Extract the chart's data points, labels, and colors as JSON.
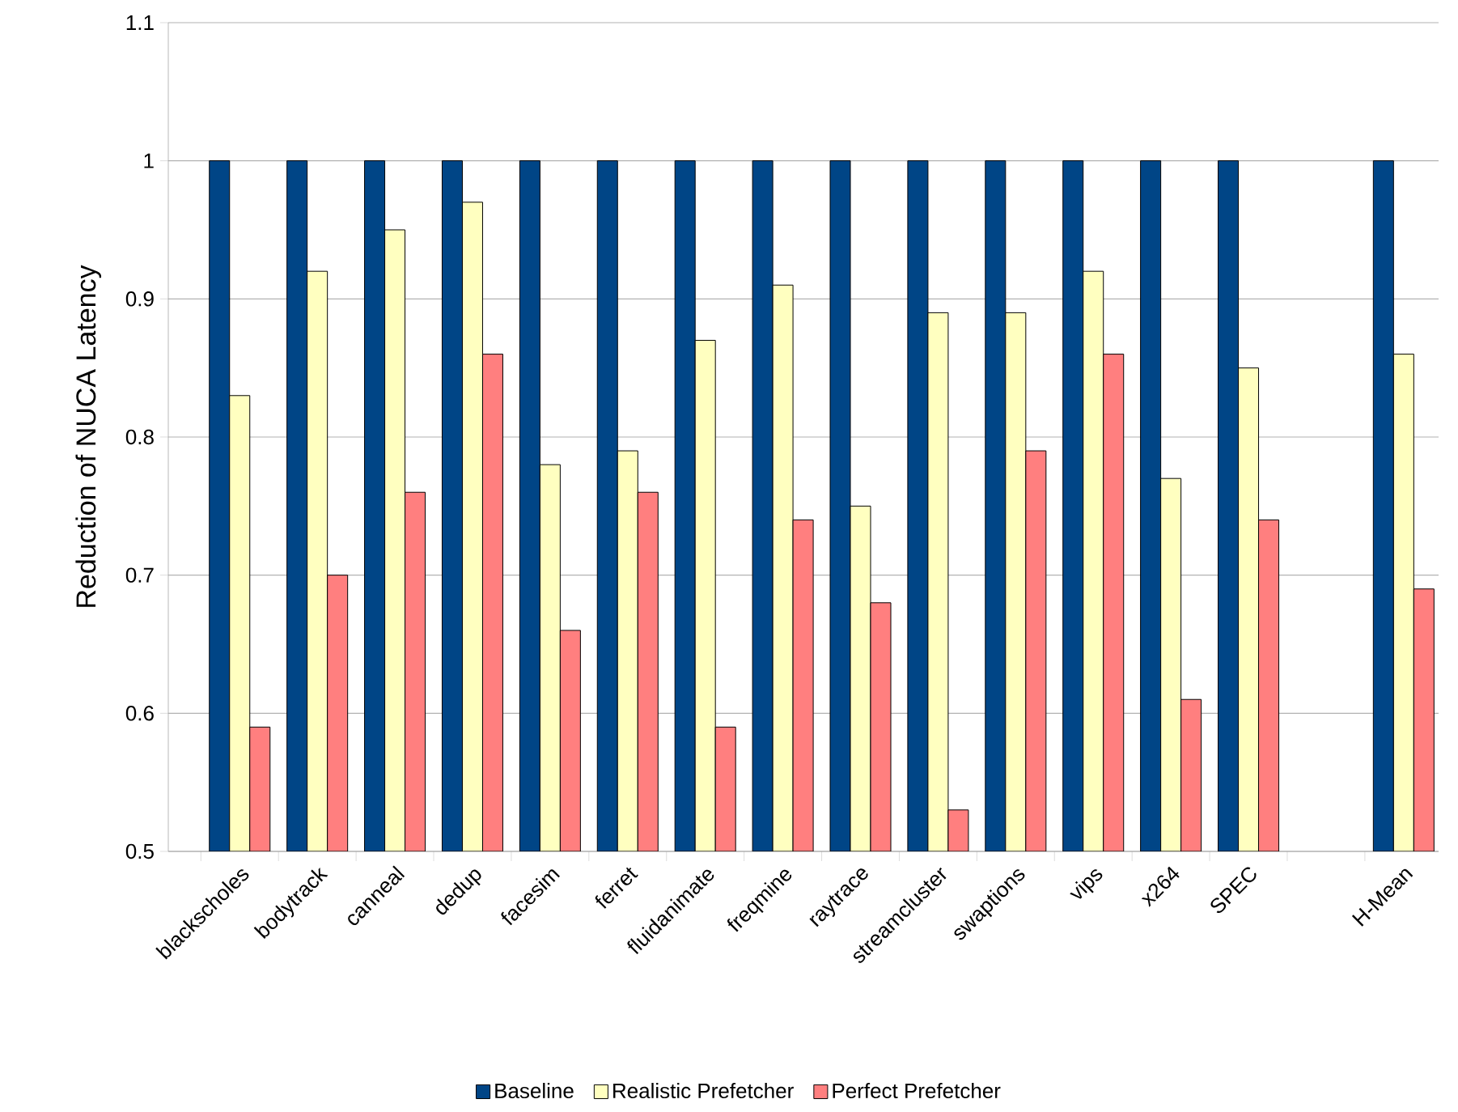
{
  "chart_data": {
    "type": "bar",
    "ylabel": "Reduction of NUCA Latency",
    "categories": [
      "blackscholes",
      "bodytrack",
      "canneal",
      "dedup",
      "facesim",
      "ferret",
      "fluidanimate",
      "freqmine",
      "raytrace",
      "streamcluster",
      "swaptions",
      "vips",
      "x264",
      "SPEC",
      null,
      "H-Mean"
    ],
    "series": [
      {
        "name": "Baseline",
        "color": "#004586",
        "values": [
          1,
          1,
          1,
          1,
          1,
          1,
          1,
          1,
          1,
          1,
          1,
          1,
          1,
          1,
          null,
          1
        ]
      },
      {
        "name": "Realistic Prefetcher",
        "color": "#ffffc0",
        "values": [
          0.83,
          0.92,
          0.95,
          0.97,
          0.78,
          0.79,
          0.87,
          0.91,
          0.75,
          0.89,
          0.89,
          0.92,
          0.77,
          0.85,
          null,
          0.86
        ]
      },
      {
        "name": "Perfect Prefetcher",
        "color": "#ff7f7f",
        "values": [
          0.59,
          0.7,
          0.76,
          0.86,
          0.66,
          0.76,
          0.59,
          0.74,
          0.68,
          0.53,
          0.79,
          0.86,
          0.61,
          0.74,
          null,
          0.69
        ]
      }
    ],
    "ylim": [
      0.5,
      1.1
    ],
    "yticks": [
      0.5,
      0.6,
      0.7,
      0.8,
      0.9,
      1,
      1.1
    ],
    "grid": "y",
    "legend": "bottom"
  }
}
